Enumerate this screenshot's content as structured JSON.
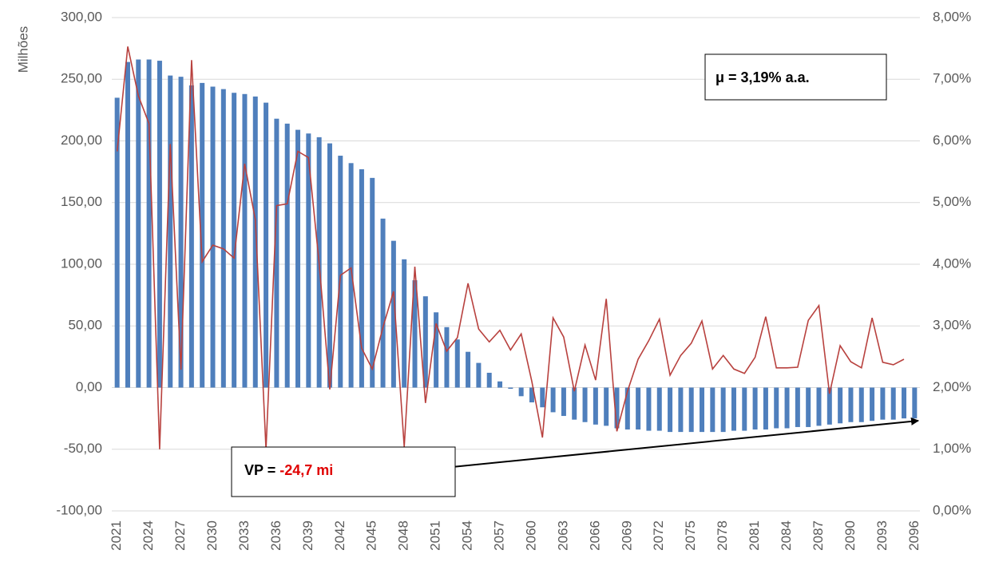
{
  "chart_data": {
    "type": "bar",
    "y_label": "Milhões",
    "categories": [
      "2021",
      null,
      null,
      "2024",
      null,
      null,
      "2027",
      null,
      null,
      "2030",
      null,
      null,
      "2033",
      null,
      null,
      "2036",
      null,
      null,
      "2039",
      null,
      null,
      "2042",
      null,
      null,
      "2045",
      null,
      null,
      "2048",
      null,
      null,
      "2051",
      null,
      null,
      "2054",
      null,
      null,
      "2057",
      null,
      null,
      "2060",
      null,
      null,
      "2063",
      null,
      null,
      "2066",
      null,
      null,
      "2069",
      null,
      null,
      "2072",
      null,
      null,
      "2075",
      null,
      null,
      "2078",
      null,
      null,
      "2081",
      null,
      null,
      "2084",
      null,
      null,
      "2087",
      null,
      null,
      "2090",
      null,
      null,
      "2093",
      null,
      null,
      "2096"
    ],
    "series": [
      {
        "type": "bar",
        "color": "#4f7fbc",
        "values": [
          235,
          264,
          266,
          266,
          265,
          253,
          252,
          245,
          247,
          244,
          242,
          239,
          238,
          236,
          231,
          218,
          214,
          209,
          206,
          203,
          198,
          188,
          182,
          177,
          170,
          137,
          119,
          104,
          87,
          74,
          61,
          49,
          39,
          29,
          20,
          12,
          5,
          -1,
          -7,
          -12,
          -16,
          -20,
          -23,
          -26,
          -28,
          -30,
          -31,
          -33,
          -34,
          -34,
          -35,
          -35,
          -36,
          -36,
          -36,
          -36,
          -36,
          -36,
          -35,
          -35,
          -34,
          -34,
          -33,
          -33,
          -32,
          -32,
          -31,
          -30,
          -29,
          -28,
          -28,
          -27,
          -26,
          -26,
          -25,
          -25
        ]
      },
      {
        "type": "line",
        "axis": "y2",
        "color": "#b8413e",
        "values": [
          5.83,
          7.53,
          6.73,
          6.28,
          1.0,
          5.95,
          2.29,
          7.31,
          4.04,
          4.31,
          4.25,
          4.1,
          5.63,
          4.72,
          1.0,
          4.95,
          4.98,
          5.83,
          5.73,
          4.01,
          1.97,
          3.82,
          3.94,
          2.64,
          2.3,
          2.98,
          3.56,
          1.04,
          3.96,
          1.75,
          3.04,
          2.59,
          2.81,
          3.69,
          2.95,
          2.74,
          2.93,
          2.61,
          2.87,
          2.1,
          1.19,
          3.13,
          2.82,
          1.94,
          2.69,
          2.12,
          3.44,
          1.29,
          1.94,
          2.46,
          2.76,
          3.11,
          2.2,
          2.52,
          2.72,
          3.08,
          2.3,
          2.52,
          2.3,
          2.23,
          2.49,
          3.15,
          2.32,
          2.32,
          2.33,
          3.09,
          3.33,
          1.9,
          2.68,
          2.42,
          2.32,
          3.13,
          2.41,
          2.37,
          2.46,
          null
        ]
      }
    ],
    "ylim": [
      -100,
      300
    ],
    "yticks": [
      {
        "value": -100,
        "label": "-100,00"
      },
      {
        "value": -50,
        "label": "-50,00"
      },
      {
        "value": 0,
        "label": "0,00"
      },
      {
        "value": 50,
        "label": "50,00"
      },
      {
        "value": 100,
        "label": "100,00"
      },
      {
        "value": 150,
        "label": "150,00"
      },
      {
        "value": 200,
        "label": "200,00"
      },
      {
        "value": 250,
        "label": "250,00"
      },
      {
        "value": 300,
        "label": "300,00"
      }
    ],
    "y2lim": [
      0,
      8
    ],
    "y2ticks": [
      {
        "value": 0,
        "label": "0,00%"
      },
      {
        "value": 1,
        "label": "1,00%"
      },
      {
        "value": 2,
        "label": "2,00%"
      },
      {
        "value": 3,
        "label": "3,00%"
      },
      {
        "value": 4,
        "label": "4,00%"
      },
      {
        "value": 5,
        "label": "5,00%"
      },
      {
        "value": 6,
        "label": "6,00%"
      },
      {
        "value": 7,
        "label": "7,00%"
      },
      {
        "value": 8,
        "label": "8,00%"
      }
    ],
    "grid": true,
    "annotations": [
      {
        "text": "μ = 3,19% a.a."
      },
      {
        "text": "VP = ",
        "highlight": "-24,7 mi"
      }
    ]
  }
}
